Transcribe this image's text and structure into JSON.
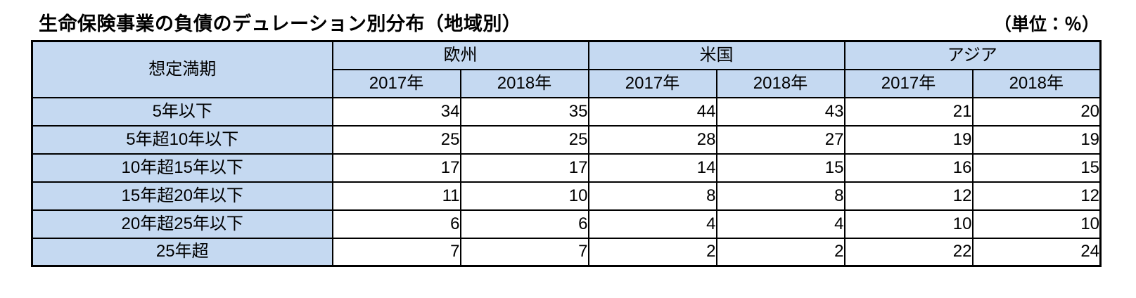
{
  "title": "生命保険事業の負債のデュレーション別分布（地域別）",
  "unit_label": "（単位：％）",
  "colors": {
    "header_fill": "#c5d9f1",
    "border": "#000000",
    "background": "#ffffff"
  },
  "table": {
    "corner_header": "想定満期",
    "groups": [
      {
        "label": "欧州",
        "years": [
          "2017年",
          "2018年"
        ]
      },
      {
        "label": "米国",
        "years": [
          "2017年",
          "2018年"
        ]
      },
      {
        "label": "アジア",
        "years": [
          "2017年",
          "2018年"
        ]
      }
    ],
    "rows": [
      {
        "label": "5年以下",
        "values": [
          34,
          35,
          44,
          43,
          21,
          20
        ]
      },
      {
        "label": "5年超10年以下",
        "values": [
          25,
          25,
          28,
          27,
          19,
          19
        ]
      },
      {
        "label": "10年超15年以下",
        "values": [
          17,
          17,
          14,
          15,
          16,
          15
        ]
      },
      {
        "label": "15年超20年以下",
        "values": [
          11,
          10,
          8,
          8,
          12,
          12
        ]
      },
      {
        "label": "20年超25年以下",
        "values": [
          6,
          6,
          4,
          4,
          10,
          10
        ]
      },
      {
        "label": "25年超",
        "values": [
          7,
          7,
          2,
          2,
          22,
          24
        ]
      }
    ]
  },
  "chart_data": {
    "type": "table",
    "title": "生命保険事業の負債のデュレーション別分布（地域別）",
    "unit": "%",
    "row_header": "想定満期",
    "categories": [
      "5年以下",
      "5年超10年以下",
      "10年超15年以下",
      "15年超20年以下",
      "20年超25年以下",
      "25年超"
    ],
    "series": [
      {
        "name": "欧州 2017年",
        "values": [
          34,
          25,
          17,
          11,
          6,
          7
        ]
      },
      {
        "name": "欧州 2018年",
        "values": [
          35,
          25,
          17,
          10,
          6,
          7
        ]
      },
      {
        "name": "米国 2017年",
        "values": [
          44,
          28,
          14,
          8,
          4,
          2
        ]
      },
      {
        "name": "米国 2018年",
        "values": [
          43,
          27,
          15,
          8,
          4,
          2
        ]
      },
      {
        "name": "アジア 2017年",
        "values": [
          21,
          19,
          16,
          12,
          10,
          22
        ]
      },
      {
        "name": "アジア 2018年",
        "values": [
          20,
          19,
          15,
          12,
          10,
          24
        ]
      }
    ]
  }
}
